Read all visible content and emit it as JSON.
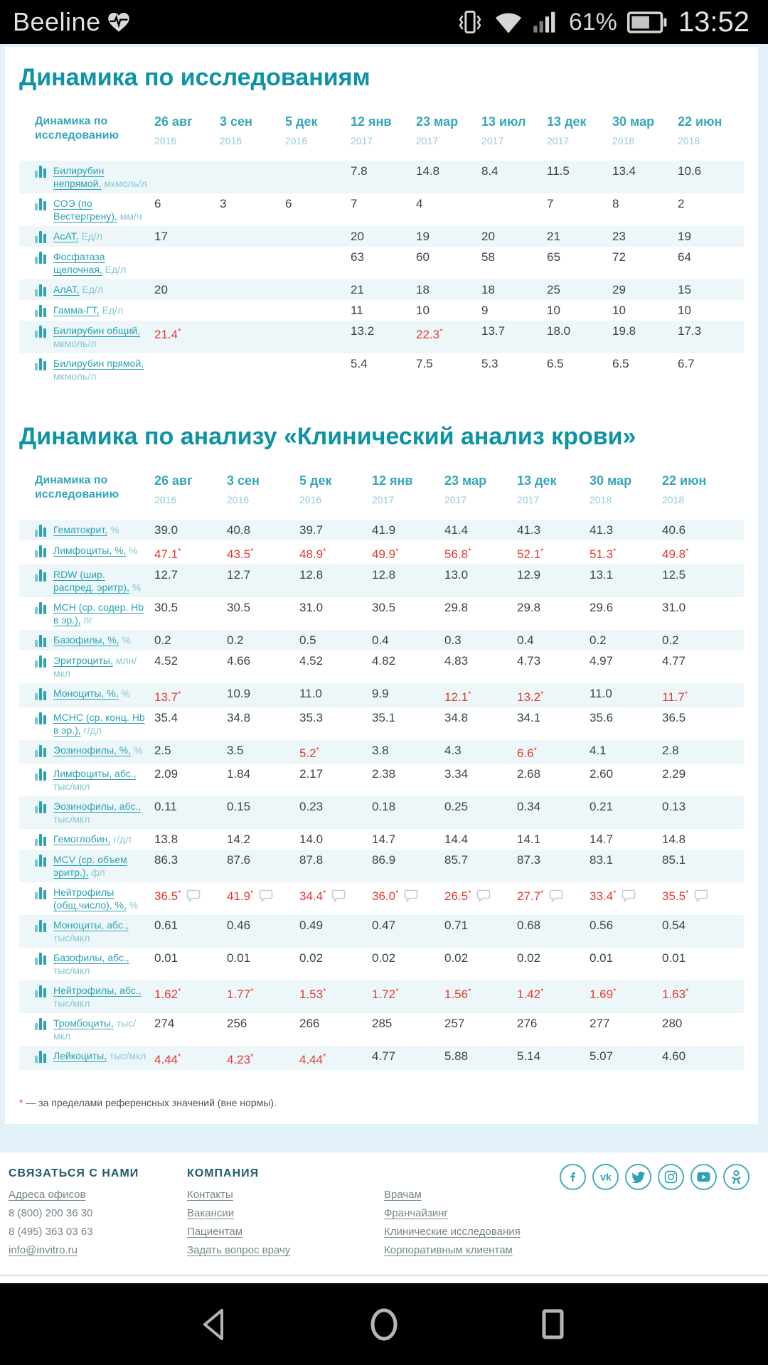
{
  "status_bar": {
    "carrier": "Beeline",
    "icons": [
      "vibrate",
      "wifi",
      "signal"
    ],
    "battery_percent": "61%",
    "time": "13:52"
  },
  "sections": [
    {
      "title": "Динамика по исследованиям",
      "table": {
        "corner_label": "Динамика по исследованию",
        "columns": [
          {
            "day": "26 авг",
            "year": "2016"
          },
          {
            "day": "3 сен",
            "year": "2016"
          },
          {
            "day": "5 дек",
            "year": "2016"
          },
          {
            "day": "12 янв",
            "year": "2017"
          },
          {
            "day": "23 мар",
            "year": "2017"
          },
          {
            "day": "13 июл",
            "year": "2017"
          },
          {
            "day": "13 дек",
            "year": "2017"
          },
          {
            "day": "30 мар",
            "year": "2018"
          },
          {
            "day": "22 июн",
            "year": "2018"
          }
        ],
        "rows": [
          {
            "name": "Билирубин непрямой,",
            "unit": "мкмоль/л",
            "values": [
              "",
              "",
              "",
              "7.8",
              "14.8",
              "8.4",
              "11.5",
              "13.4",
              "10.6"
            ]
          },
          {
            "name": "СОЭ (по Вестергрену),",
            "unit": "мм/ч",
            "values": [
              "6",
              "3",
              "6",
              "7",
              "4",
              "",
              "7",
              "8",
              "2"
            ]
          },
          {
            "name": "АсАТ,",
            "unit": "Ед/л",
            "values": [
              "17",
              "",
              "",
              "20",
              "19",
              "20",
              "21",
              "23",
              "19"
            ]
          },
          {
            "name": "Фосфатаза щелочная,",
            "unit": "Ед/л",
            "values": [
              "",
              "",
              "",
              "63",
              "60",
              "58",
              "65",
              "72",
              "64"
            ]
          },
          {
            "name": "АлАТ,",
            "unit": "Ед/л",
            "values": [
              "20",
              "",
              "",
              "21",
              "18",
              "18",
              "25",
              "29",
              "15"
            ]
          },
          {
            "name": "Гамма-ГТ,",
            "unit": "Ед/л",
            "values": [
              "",
              "",
              "",
              "11",
              "10",
              "9",
              "10",
              "10",
              "10"
            ]
          },
          {
            "name": "Билирубин общий,",
            "unit": "мкмоль/л",
            "values": [
              "21.4*",
              "",
              "",
              "13.2",
              "22.3*",
              "13.7",
              "18.0",
              "19.8",
              "17.3"
            ]
          },
          {
            "name": "Билирубин прямой,",
            "unit": "мкмоль/л",
            "values": [
              "",
              "",
              "",
              "5.4",
              "7.5",
              "5.3",
              "6.5",
              "6.5",
              "6.7"
            ]
          }
        ]
      }
    },
    {
      "title": "Динамика по анализу «Клинический анализ крови»",
      "table": {
        "corner_label": "Динамика по исследованию",
        "columns": [
          {
            "day": "26 авг",
            "year": "2016"
          },
          {
            "day": "3 сен",
            "year": "2016"
          },
          {
            "day": "5 дек",
            "year": "2016"
          },
          {
            "day": "12 янв",
            "year": "2017"
          },
          {
            "day": "23 мар",
            "year": "2017"
          },
          {
            "day": "13 дек",
            "year": "2017"
          },
          {
            "day": "30 мар",
            "year": "2018"
          },
          {
            "day": "22 июн",
            "year": "2018"
          }
        ],
        "rows": [
          {
            "name": "Гематокрит,",
            "unit": "%",
            "values": [
              "39.0",
              "40.8",
              "39.7",
              "41.9",
              "41.4",
              "41.3",
              "41.3",
              "40.6"
            ]
          },
          {
            "name": "Лимфоциты, %,",
            "unit": "%",
            "values": [
              "47.1*",
              "43.5*",
              "48.9*",
              "49.9*",
              "56.8*",
              "52.1*",
              "51.3*",
              "49.8*"
            ]
          },
          {
            "name": "RDW (шир. распред. эритр),",
            "unit": "%",
            "values": [
              "12.7",
              "12.7",
              "12.8",
              "12.8",
              "13.0",
              "12.9",
              "13.1",
              "12.5"
            ]
          },
          {
            "name": "MCH (ср. содер. Hb в эр.),",
            "unit": "пг",
            "values": [
              "30.5",
              "30.5",
              "31.0",
              "30.5",
              "29.8",
              "29.8",
              "29.6",
              "31.0"
            ]
          },
          {
            "name": "Базофилы, %,",
            "unit": "%",
            "values": [
              "0.2",
              "0.2",
              "0.5",
              "0.4",
              "0.3",
              "0.4",
              "0.2",
              "0.2"
            ]
          },
          {
            "name": "Эритроциты,",
            "unit": "млн/мкл",
            "values": [
              "4.52",
              "4.66",
              "4.52",
              "4.82",
              "4.83",
              "4.73",
              "4.97",
              "4.77"
            ]
          },
          {
            "name": "Моноциты, %,",
            "unit": "%",
            "values": [
              "13.7*",
              "10.9",
              "11.0",
              "9.9",
              "12.1*",
              "13.2*",
              "11.0",
              "11.7*"
            ]
          },
          {
            "name": "MCHC (ср. конц. Hb в эр.),",
            "unit": "г/дл",
            "values": [
              "35.4",
              "34.8",
              "35.3",
              "35.1",
              "34.8",
              "34.1",
              "35.6",
              "36.5"
            ]
          },
          {
            "name": "Эозинофилы, %,",
            "unit": "%",
            "values": [
              "2.5",
              "3.5",
              "5.2*",
              "3.8",
              "4.3",
              "6.6*",
              "4.1",
              "2.8"
            ]
          },
          {
            "name": "Лимфоциты, абс.,",
            "unit": "тыс/мкл",
            "values": [
              "2.09",
              "1.84",
              "2.17",
              "2.38",
              "3.34",
              "2.68",
              "2.60",
              "2.29"
            ]
          },
          {
            "name": "Эозинофилы, абс.,",
            "unit": "тыс/мкл",
            "values": [
              "0.11",
              "0.15",
              "0.23",
              "0.18",
              "0.25",
              "0.34",
              "0.21",
              "0.13"
            ]
          },
          {
            "name": "Гемоглобин,",
            "unit": "г/дл",
            "values": [
              "13.8",
              "14.2",
              "14.0",
              "14.7",
              "14.4",
              "14.1",
              "14.7",
              "14.8"
            ]
          },
          {
            "name": "MCV (ср. объем эритр.),",
            "unit": "фл",
            "values": [
              "86.3",
              "87.6",
              "87.8",
              "86.9",
              "85.7",
              "87.3",
              "83.1",
              "85.1"
            ]
          },
          {
            "name": "Нейтрофилы (общ.число), %,",
            "unit": "%",
            "comment_icon": true,
            "values": [
              "36.5*",
              "41.9*",
              "34.4*",
              "36.0*",
              "26.5*",
              "27.7*",
              "33.4*",
              "35.5*"
            ]
          },
          {
            "name": "Моноциты, абс.,",
            "unit": "тыс/мкл",
            "values": [
              "0.61",
              "0.46",
              "0.49",
              "0.47",
              "0.71",
              "0.68",
              "0.56",
              "0.54"
            ]
          },
          {
            "name": "Базофилы, абс.,",
            "unit": "тыс/мкл",
            "values": [
              "0.01",
              "0.01",
              "0.02",
              "0.02",
              "0.02",
              "0.02",
              "0.01",
              "0.01"
            ]
          },
          {
            "name": "Нейтрофилы, абс.,",
            "unit": "тыс/мкл",
            "values": [
              "1.62*",
              "1.77*",
              "1.53*",
              "1.72*",
              "1.56*",
              "1.42*",
              "1.69*",
              "1.63*"
            ]
          },
          {
            "name": "Тромбоциты,",
            "unit": "тыс/мкл",
            "values": [
              "274",
              "256",
              "266",
              "285",
              "257",
              "276",
              "277",
              "280"
            ]
          },
          {
            "name": "Лейкоциты,",
            "unit": "тыс/мкл",
            "values": [
              "4.44*",
              "4.23*",
              "4.44*",
              "4.77",
              "5.88",
              "5.14",
              "5.07",
              "4.60"
            ]
          }
        ]
      }
    }
  ],
  "footnote": {
    "marker": "*",
    "text": "— за пределами референсных значений (вне нормы)."
  },
  "footer": {
    "columns": [
      {
        "heading": "СВЯЗАТЬСЯ С НАМИ",
        "items": [
          {
            "text": "Адреса офисов",
            "link": true
          },
          {
            "text": "8 (800) 200 36 30",
            "link": false
          },
          {
            "text": "8 (495) 363 03 63",
            "link": false
          },
          {
            "text": "info@invitro.ru",
            "link": true
          }
        ]
      },
      {
        "heading": "КОМПАНИЯ",
        "items": [
          {
            "text": "Контакты",
            "link": true
          },
          {
            "text": "Вакансии",
            "link": true
          },
          {
            "text": "Пациентам",
            "link": true
          },
          {
            "text": "Задать вопрос врачу",
            "link": true
          }
        ]
      },
      {
        "heading": "",
        "items": [
          {
            "text": "Врачам",
            "link": true
          },
          {
            "text": "Франчайзинг",
            "link": true
          },
          {
            "text": "Клинические исследования",
            "link": true
          },
          {
            "text": "Корпоративным клиентам",
            "link": true
          }
        ]
      }
    ],
    "social": [
      "facebook",
      "vk",
      "twitter",
      "instagram",
      "youtube",
      "odnoklassniki"
    ]
  },
  "navbar": {
    "icons": [
      "back",
      "home",
      "recents"
    ]
  },
  "colors": {
    "accent": "#0d93a5",
    "link": "#2ba3b4",
    "abnormal": "#e23b31",
    "stripe": "#edf7f9",
    "page_background": "#e2f1f7"
  }
}
